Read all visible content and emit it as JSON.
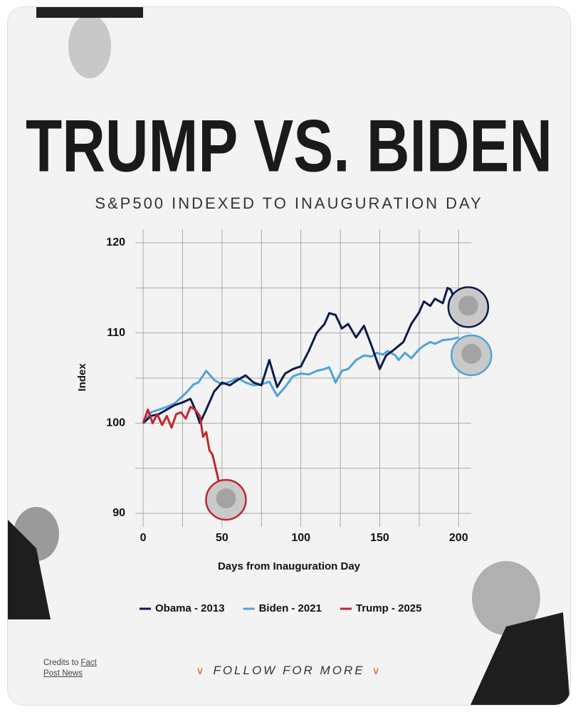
{
  "title": "TRUMP VS. BIDEN",
  "credits": {
    "prefix": "Credits to",
    "link": "Fact Post News"
  },
  "call_to_action": "FOLLOW FOR MORE",
  "chart_data": {
    "type": "line",
    "subtitle": "S&P500 INDEXED TO INAUGURATION DAY",
    "x_label": "Days from Inauguration Day",
    "y_label": "Index",
    "xlim": [
      -5,
      208
    ],
    "ylim": [
      88.5,
      121.5
    ],
    "xticks": [
      0,
      50,
      100,
      150,
      200
    ],
    "yticks": [
      90,
      100,
      110,
      120
    ],
    "xgrid": [
      0,
      25,
      50,
      75,
      100,
      125,
      150,
      175,
      200
    ],
    "ygrid": [
      90,
      95,
      100,
      105,
      110,
      115,
      120
    ],
    "series": [
      {
        "name": "Obama - 2013",
        "color": "#0d1b4a",
        "x": [
          0,
          5,
          10,
          15,
          20,
          25,
          30,
          33,
          36,
          40,
          45,
          50,
          55,
          60,
          65,
          70,
          75,
          80,
          85,
          90,
          95,
          100,
          105,
          110,
          115,
          118,
          122,
          126,
          130,
          135,
          140,
          145,
          150,
          154,
          158,
          165,
          170,
          175,
          178,
          182,
          185,
          190,
          193,
          195,
          198
        ],
        "values": [
          100,
          100.8,
          101,
          101.5,
          102,
          102.3,
          102.7,
          101.5,
          100,
          101.5,
          103.5,
          104.5,
          104.2,
          104.8,
          105.3,
          104.5,
          104.2,
          107,
          104,
          105.5,
          106,
          106.3,
          108,
          110,
          111,
          112.2,
          112,
          110.5,
          111,
          109.5,
          110.8,
          108.5,
          106,
          107.5,
          108,
          109,
          111,
          112.3,
          113.5,
          113,
          113.8,
          113.3,
          115,
          114.8,
          113.5
        ]
      },
      {
        "name": "Biden - 2021",
        "color": "#4fa3d8",
        "x": [
          0,
          5,
          10,
          15,
          20,
          25,
          28,
          32,
          35,
          40,
          45,
          50,
          55,
          60,
          65,
          70,
          75,
          80,
          85,
          90,
          95,
          100,
          105,
          110,
          115,
          118,
          122,
          126,
          130,
          135,
          140,
          145,
          148,
          152,
          155,
          160,
          162,
          166,
          170,
          175,
          178,
          182,
          185,
          190,
          195,
          200
        ],
        "values": [
          100,
          101.2,
          101.5,
          101.8,
          102.2,
          103,
          103.5,
          104.3,
          104.5,
          105.8,
          104.8,
          104.3,
          104.6,
          105,
          104.5,
          104.2,
          104.3,
          104.6,
          103,
          104,
          105.2,
          105.5,
          105.4,
          105.8,
          106,
          106.2,
          104.5,
          105.8,
          106,
          107,
          107.5,
          107.4,
          107.8,
          107.6,
          108,
          107.5,
          107,
          107.8,
          107.2,
          108.2,
          108.6,
          109,
          108.8,
          109.2,
          109.3,
          109.5
        ]
      },
      {
        "name": "Trump - 2025",
        "color": "#c0272d",
        "x": [
          0,
          3,
          6,
          9,
          12,
          15,
          18,
          21,
          24,
          27,
          30,
          33,
          36,
          38,
          40,
          42,
          44,
          46,
          48
        ],
        "values": [
          100,
          101.5,
          100,
          101,
          99.8,
          100.8,
          99.5,
          101,
          101.2,
          100.5,
          101.8,
          101.5,
          100.8,
          98.5,
          99,
          97,
          96.5,
          95,
          93.5
        ]
      }
    ]
  }
}
